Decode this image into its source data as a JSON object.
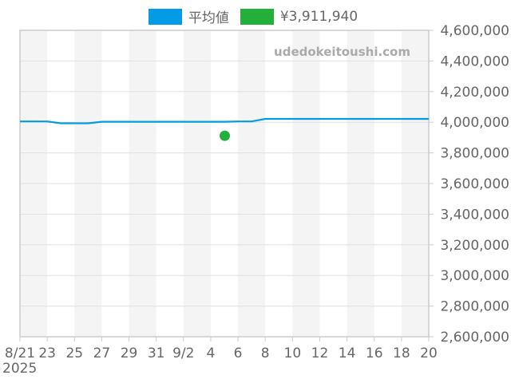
{
  "legend": {
    "items": [
      {
        "label": "平均値",
        "color": "#039be5"
      },
      {
        "label": "¥3,911,940",
        "color": "#22b03a"
      }
    ]
  },
  "watermark": "udedokeitoushi.com",
  "colors": {
    "line": "#039be5",
    "point": "#22b03a",
    "band": "#f4f4f4",
    "grid": "#e0e0e0",
    "frame": "#cccccc",
    "text": "#666666"
  },
  "chart_data": {
    "type": "line",
    "title": "",
    "xlabel": "",
    "ylabel": "",
    "x_tick_labels": [
      "8/21\n2025",
      "23",
      "25",
      "27",
      "29",
      "31",
      "9/2",
      "4",
      "6",
      "8",
      "10",
      "12",
      "14",
      "16",
      "18",
      "20"
    ],
    "y_tick_labels": [
      "4,600,000",
      "4,400,000",
      "4,200,000",
      "4,000,000",
      "3,800,000",
      "3,600,000",
      "3,400,000",
      "3,200,000",
      "3,000,000",
      "2,800,000",
      "2,600,000"
    ],
    "ylim": [
      2600000,
      4600000
    ],
    "xlim": [
      "2025-08-21",
      "2025-09-20"
    ],
    "grid": true,
    "legend_position": "top",
    "y_axis_position": "right",
    "series": [
      {
        "name": "平均値",
        "type": "line",
        "x": [
          "2025-08-21",
          "2025-08-22",
          "2025-08-23",
          "2025-08-24",
          "2025-08-25",
          "2025-08-26",
          "2025-08-27",
          "2025-08-28",
          "2025-08-29",
          "2025-08-30",
          "2025-08-31",
          "2025-09-01",
          "2025-09-02",
          "2025-09-03",
          "2025-09-04",
          "2025-09-05",
          "2025-09-06",
          "2025-09-07",
          "2025-09-08",
          "2025-09-09",
          "2025-09-10",
          "2025-09-11",
          "2025-09-12",
          "2025-09-13",
          "2025-09-14",
          "2025-09-15",
          "2025-09-16",
          "2025-09-17",
          "2025-09-18",
          "2025-09-19",
          "2025-09-20"
        ],
        "values": [
          4005000,
          4005000,
          4005000,
          3993000,
          3993000,
          3993000,
          4003000,
          4003000,
          4003000,
          4003000,
          4003000,
          4003000,
          4003000,
          4003000,
          4003000,
          4003000,
          4005000,
          4005000,
          4022000,
          4022000,
          4022000,
          4022000,
          4022000,
          4022000,
          4022000,
          4022000,
          4022000,
          4022000,
          4022000,
          4022000,
          4022000
        ]
      },
      {
        "name": "¥3,911,940",
        "type": "scatter",
        "x": [
          "2025-09-05"
        ],
        "values": [
          3911940
        ]
      }
    ]
  }
}
